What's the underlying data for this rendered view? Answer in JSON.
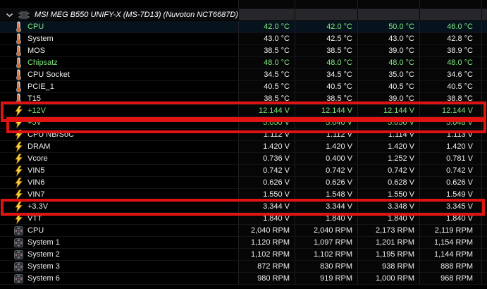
{
  "window": {
    "title": "MSI MEG B550 UNIFY-X (MS-7D13) (Nuvoton NCT6687D)"
  },
  "colors": {
    "background": "#000000",
    "header_cell": "#27272b",
    "selected_row_bg": "#06131d",
    "highlight_green": "#7ee87e",
    "text_white": "#ededed",
    "annotation_red": "#e01313"
  },
  "icons": {
    "legend": [
      "chevron-down-icon",
      "chip-icon",
      "thermometer-icon",
      "lightning-icon",
      "fan-icon"
    ]
  },
  "sensor_table": {
    "rows": [
      {
        "label": "CPU",
        "icon": "thermometer-icon",
        "color": "green",
        "selected": true,
        "values": [
          "42.0 °C",
          "42.0 °C",
          "50.0 °C",
          "46.0 °C"
        ]
      },
      {
        "label": "System",
        "icon": "thermometer-icon",
        "color": "white",
        "values": [
          "43.0 °C",
          "42.5 °C",
          "43.0 °C",
          "42.8 °C"
        ]
      },
      {
        "label": "MOS",
        "icon": "thermometer-icon",
        "color": "white",
        "values": [
          "38.5 °C",
          "38.5 °C",
          "39.0 °C",
          "38.9 °C"
        ]
      },
      {
        "label": "Chipsatz",
        "icon": "thermometer-icon",
        "color": "green",
        "values": [
          "48.0 °C",
          "48.0 °C",
          "48.0 °C",
          "48.0 °C"
        ]
      },
      {
        "label": "CPU Socket",
        "icon": "thermometer-icon",
        "color": "white",
        "values": [
          "34.5 °C",
          "34.5 °C",
          "35.0 °C",
          "34.6 °C"
        ]
      },
      {
        "label": "PCIE_1",
        "icon": "thermometer-icon",
        "color": "white",
        "values": [
          "40.5 °C",
          "40.5 °C",
          "40.5 °C",
          "40.5 °C"
        ]
      },
      {
        "label": "T15",
        "icon": "thermometer-icon",
        "color": "white",
        "values": [
          "38.5 °C",
          "38.5 °C",
          "39.0 °C",
          "38.8 °C"
        ]
      },
      {
        "label": "+12V",
        "icon": "lightning-icon",
        "color": "green",
        "annotated": true,
        "values": [
          "12.144 V",
          "12.144 V",
          "12.144 V",
          "12.144 V"
        ]
      },
      {
        "label": "+5V",
        "icon": "lightning-icon",
        "color": "green",
        "annotated": true,
        "values": [
          "5.050 V",
          "5.040 V",
          "5.050 V",
          "5.048 V"
        ]
      },
      {
        "label": "CPU NB/SoC",
        "icon": "lightning-icon",
        "color": "white",
        "values": [
          "1.112 V",
          "1.112 V",
          "1.114 V",
          "1.113 V"
        ]
      },
      {
        "label": "DRAM",
        "icon": "lightning-icon",
        "color": "white",
        "values": [
          "1.420 V",
          "1.420 V",
          "1.420 V",
          "1.420 V"
        ]
      },
      {
        "label": "Vcore",
        "icon": "lightning-icon",
        "color": "white",
        "values": [
          "0.736 V",
          "0.400 V",
          "1.252 V",
          "0.781 V"
        ]
      },
      {
        "label": "VIN5",
        "icon": "lightning-icon",
        "color": "white",
        "values": [
          "0.742 V",
          "0.742 V",
          "0.742 V",
          "0.742 V"
        ]
      },
      {
        "label": "VIN6",
        "icon": "lightning-icon",
        "color": "white",
        "values": [
          "0.626 V",
          "0.626 V",
          "0.628 V",
          "0.626 V"
        ]
      },
      {
        "label": "VIN7",
        "icon": "lightning-icon",
        "color": "white",
        "values": [
          "1.550 V",
          "1.548 V",
          "1.550 V",
          "1.549 V"
        ]
      },
      {
        "label": "+3.3V",
        "icon": "lightning-icon",
        "color": "white",
        "annotated": true,
        "values": [
          "3.344 V",
          "3.344 V",
          "3.348 V",
          "3.345 V"
        ]
      },
      {
        "label": "VTT",
        "icon": "lightning-icon",
        "color": "white",
        "values": [
          "1.840 V",
          "1.840 V",
          "1.840 V",
          "1.840 V"
        ]
      },
      {
        "label": "CPU",
        "icon": "fan-icon",
        "color": "white",
        "values": [
          "2,040 RPM",
          "2,040 RPM",
          "2,173 RPM",
          "2,119 RPM"
        ]
      },
      {
        "label": "System 1",
        "icon": "fan-icon",
        "color": "white",
        "values": [
          "1,120 RPM",
          "1,097 RPM",
          "1,201 RPM",
          "1,154 RPM"
        ]
      },
      {
        "label": "System 2",
        "icon": "fan-icon",
        "color": "white",
        "values": [
          "1,102 RPM",
          "1,102 RPM",
          "1,195 RPM",
          "1,144 RPM"
        ]
      },
      {
        "label": "System 3",
        "icon": "fan-icon",
        "color": "white",
        "values": [
          "872 RPM",
          "830 RPM",
          "938 RPM",
          "888 RPM"
        ]
      },
      {
        "label": "System 6",
        "icon": "fan-icon",
        "color": "white",
        "values": [
          "980 RPM",
          "919 RPM",
          "1,000 RPM",
          "968 RPM"
        ]
      }
    ]
  }
}
